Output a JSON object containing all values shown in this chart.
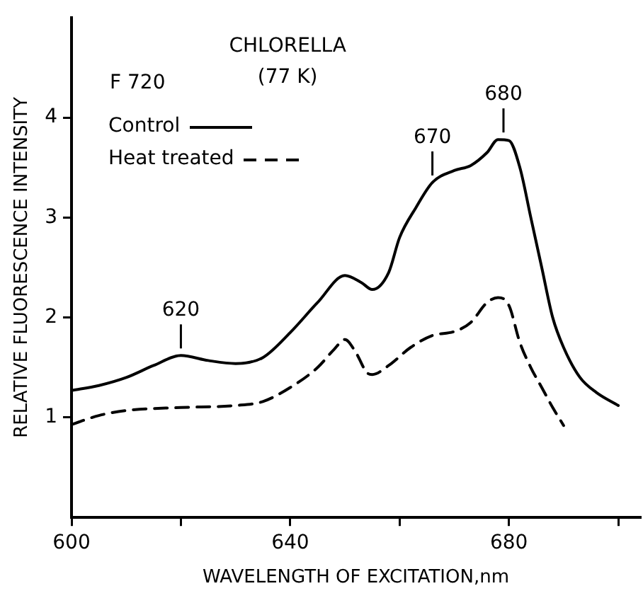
{
  "chart_data": {
    "type": "line",
    "title": "CHLORELLA",
    "subtitle": "(77 K)",
    "xlabel": "WAVELENGTH OF EXCITATION,nm",
    "ylabel": "RELATIVE FLUORESCENCE INTENSITY",
    "xlim": [
      600,
      704
    ],
    "xticks": [
      600,
      {
        "value": 620,
        "label": null
      },
      640,
      {
        "value": 660,
        "label": null
      },
      680,
      {
        "value": 700,
        "label": null
      }
    ],
    "ylim": [
      0,
      5
    ],
    "yticks": [
      1,
      2,
      3,
      4
    ],
    "grid": false,
    "legend": "top left",
    "marker": "none",
    "annotations": [
      "F 720",
      {
        "text": "620",
        "x": 620,
        "y": 1.62
      },
      {
        "text": "670",
        "x": 666,
        "y": 3.35
      },
      {
        "text": "680",
        "x": 679,
        "y": 3.78
      }
    ],
    "series": [
      {
        "name": "Control",
        "color": "#000000",
        "line_style": "solid",
        "x": [
          600,
          605,
          610,
          615,
          620,
          625,
          630,
          635,
          640,
          645,
          650,
          653,
          655,
          658,
          660,
          663,
          666,
          670,
          673,
          676,
          678,
          680,
          682,
          684,
          686,
          688,
          690,
          693,
          696,
          700
        ],
        "values": [
          1.27,
          1.32,
          1.4,
          1.52,
          1.62,
          1.57,
          1.54,
          1.6,
          1.85,
          2.15,
          2.42,
          2.35,
          2.28,
          2.45,
          2.8,
          3.1,
          3.35,
          3.47,
          3.52,
          3.65,
          3.78,
          3.77,
          3.5,
          3.0,
          2.5,
          2.0,
          1.7,
          1.4,
          1.25,
          1.12
        ]
      },
      {
        "name": "Heat treated",
        "color": "#000000",
        "line_style": "dashed",
        "x": [
          600,
          605,
          610,
          620,
          630,
          635,
          640,
          645,
          648,
          650,
          652,
          654,
          655,
          658,
          662,
          666,
          670,
          673,
          676,
          678,
          680,
          682,
          684,
          686,
          688,
          690
        ],
        "values": [
          0.93,
          1.02,
          1.07,
          1.1,
          1.12,
          1.16,
          1.3,
          1.5,
          1.68,
          1.78,
          1.65,
          1.45,
          1.43,
          1.52,
          1.7,
          1.82,
          1.86,
          1.95,
          2.15,
          2.2,
          2.12,
          1.75,
          1.5,
          1.3,
          1.1,
          0.92
        ]
      }
    ]
  }
}
